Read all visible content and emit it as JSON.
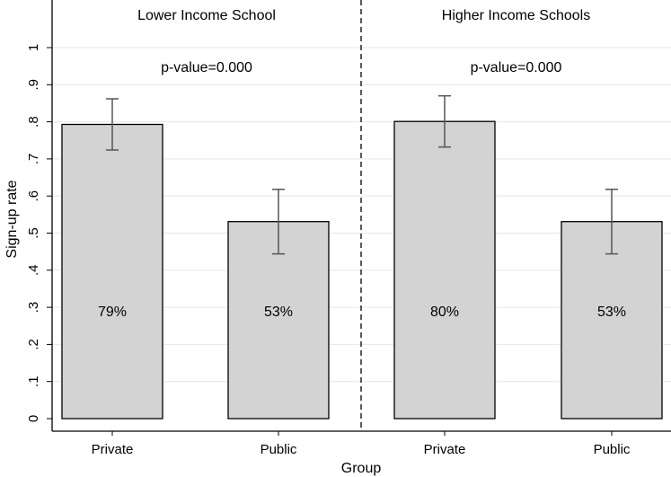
{
  "chart_data": {
    "type": "bar",
    "xlabel": "Group",
    "ylabel": "Sign-up rate",
    "ylim": [
      0,
      1.05
    ],
    "yticks": [
      {
        "value": 0,
        "label": "0"
      },
      {
        "value": 0.1,
        "label": ".1"
      },
      {
        "value": 0.2,
        "label": ".2"
      },
      {
        "value": 0.3,
        "label": ".3"
      },
      {
        "value": 0.4,
        "label": ".4"
      },
      {
        "value": 0.5,
        "label": ".5"
      },
      {
        "value": 0.6,
        "label": ".6"
      },
      {
        "value": 0.7,
        "label": ".7"
      },
      {
        "value": 0.8,
        "label": ".8"
      },
      {
        "value": 0.9,
        "label": ".9"
      },
      {
        "value": 1,
        "label": "1"
      }
    ],
    "grid": true,
    "bar_color": "#d3d3d3",
    "panels": [
      {
        "title": "Lower Income School",
        "annotation": "p-value=0.000",
        "bars": [
          {
            "category": "Private",
            "value": 0.793,
            "ci_low": 0.724,
            "ci_high": 0.862,
            "label": "79%"
          },
          {
            "category": "Public",
            "value": 0.531,
            "ci_low": 0.444,
            "ci_high": 0.618,
            "label": "53%"
          }
        ]
      },
      {
        "title": "Higher Income Schools",
        "annotation": "p-value=0.000",
        "bars": [
          {
            "category": "Private",
            "value": 0.801,
            "ci_low": 0.732,
            "ci_high": 0.87,
            "label": "80%"
          },
          {
            "category": "Public",
            "value": 0.531,
            "ci_low": 0.444,
            "ci_high": 0.618,
            "label": "53%"
          }
        ]
      }
    ]
  }
}
